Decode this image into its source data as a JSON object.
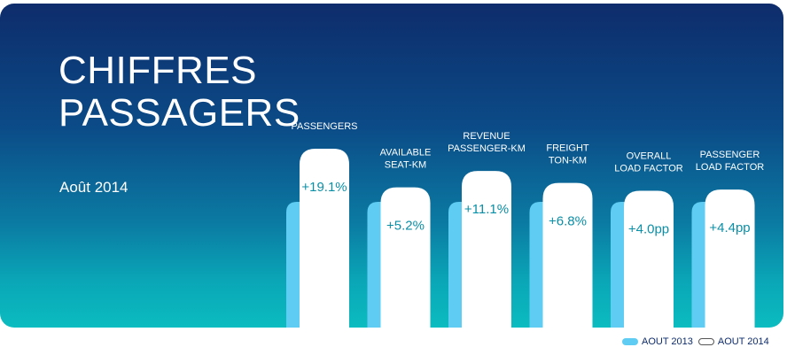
{
  "header": {
    "title_line1": "CHIFFRES",
    "title_line2": "PASSAGERS",
    "period": "Août 2014"
  },
  "legend": {
    "series_2013": "AOUT 2013",
    "series_2014": "AOUT 2014"
  },
  "chart_data": {
    "type": "bar",
    "title": "CHIFFRES PASSAGERS",
    "subtitle": "Août 2014",
    "categories": [
      [
        "PASSENGERS"
      ],
      [
        "AVAILABLE",
        "SEAT-KM"
      ],
      [
        "REVENUE",
        "PASSENGER-KM"
      ],
      [
        "FREIGHT",
        "TON-KM"
      ],
      [
        "OVERALL",
        "LOAD FACTOR"
      ],
      [
        "PASSENGER",
        "LOAD FACTOR"
      ]
    ],
    "series": [
      {
        "name": "AOUT 2013",
        "values": [
          1.0,
          1.0,
          1.0,
          1.0,
          1.0,
          1.0
        ]
      },
      {
        "name": "AOUT 2014",
        "values": [
          1.191,
          1.052,
          1.111,
          1.068,
          1.04,
          1.044
        ]
      }
    ],
    "changes": [
      "+19.1%",
      "+5.2%",
      "+11.1%",
      "+6.8%",
      "+4.0pp",
      "+4.4pp"
    ],
    "axis": "none",
    "grid": false,
    "legend_position": "bottom-right",
    "colors": {
      "aout_2013": "#5fcdf3",
      "aout_2014": "#ffffff",
      "label_text": "#ffffff",
      "change_text": "#0b8fa6"
    }
  }
}
